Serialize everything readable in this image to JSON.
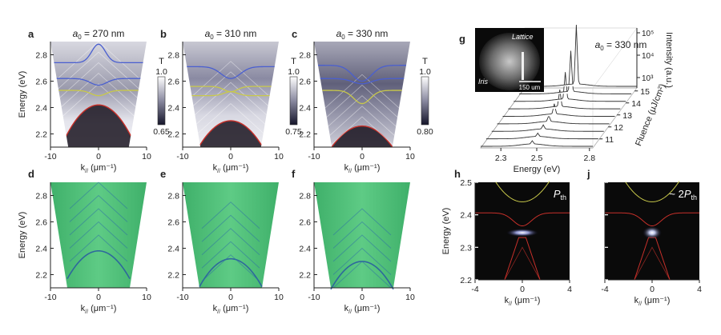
{
  "panels": {
    "a": {
      "letter": "a",
      "title": "a₀ = 270 nm",
      "cbar_top": "1.0",
      "cbar_bottom": "0.65",
      "cbar_label": "T"
    },
    "b": {
      "letter": "b",
      "title": "a₀ = 310 nm",
      "cbar_top": "1.0",
      "cbar_bottom": "0.75",
      "cbar_label": "T"
    },
    "c": {
      "letter": "c",
      "title": "a₀ = 330 nm",
      "cbar_top": "1.0",
      "cbar_bottom": "0.80",
      "cbar_label": "T"
    },
    "d": {
      "letter": "d"
    },
    "e": {
      "letter": "e"
    },
    "f": {
      "letter": "f"
    },
    "g": {
      "letter": "g",
      "annotation": "a₀ = 330 nm",
      "inset_label_lattice": "Lattice",
      "inset_label_iris": "Iris",
      "inset_scalebar": "150 um"
    },
    "h": {
      "letter": "h",
      "annotation": "P_th"
    },
    "j": {
      "letter": "j",
      "annotation": "~ 2P_th"
    }
  },
  "labels": {
    "energy_ev": "Energy (eV)",
    "k_parallel": "k// (μm⁻¹)",
    "intensity": "Intensity (a.u.)",
    "fluence": "Fluence (μJ/cm²)"
  },
  "colors": {
    "blue_band": "#4a5fd0",
    "yellow_band": "#c9c94a",
    "red_band": "#c8302a",
    "green_bg": "#4fc07a",
    "dark_bg": "#0a0a0a"
  },
  "chart_data": [
    {
      "panel": "a",
      "type": "heatmap",
      "xlabel": "k// (μm⁻¹)",
      "ylabel": "Energy (eV)",
      "xlim": [
        -10,
        10
      ],
      "ylim": [
        2.1,
        2.9
      ],
      "xticks": [
        -10,
        0,
        10
      ],
      "yticks": [
        2.2,
        2.4,
        2.6,
        2.8
      ],
      "colorbar": {
        "label": "T",
        "range": [
          0.65,
          1.0
        ]
      }
    },
    {
      "panel": "b",
      "type": "heatmap",
      "xlabel": "k// (μm⁻¹)",
      "xlim": [
        -10,
        10
      ],
      "ylim": [
        2.1,
        2.9
      ],
      "xticks": [
        -10,
        0,
        10
      ],
      "yticks": [
        2.2,
        2.4,
        2.6,
        2.8
      ],
      "colorbar": {
        "label": "T",
        "range": [
          0.75,
          1.0
        ]
      }
    },
    {
      "panel": "c",
      "type": "heatmap",
      "xlabel": "k// (μm⁻¹)",
      "xlim": [
        -10,
        10
      ],
      "ylim": [
        2.1,
        2.9
      ],
      "xticks": [
        -10,
        0,
        10
      ],
      "yticks": [
        2.2,
        2.4,
        2.6,
        2.8
      ],
      "colorbar": {
        "label": "T",
        "range": [
          0.8,
          1.0
        ]
      }
    },
    {
      "panel": "d",
      "type": "heatmap",
      "xlabel": "k// (μm⁻¹)",
      "ylabel": "Energy (eV)",
      "xlim": [
        -10,
        10
      ],
      "ylim": [
        2.1,
        2.9
      ],
      "xticks": [
        -10,
        0,
        10
      ],
      "yticks": [
        2.2,
        2.4,
        2.6,
        2.8
      ]
    },
    {
      "panel": "e",
      "type": "heatmap",
      "xlabel": "k// (μm⁻¹)",
      "xlim": [
        -10,
        10
      ],
      "ylim": [
        2.1,
        2.9
      ],
      "xticks": [
        -10,
        0,
        10
      ],
      "yticks": [
        2.2,
        2.4,
        2.6,
        2.8
      ]
    },
    {
      "panel": "f",
      "type": "heatmap",
      "xlabel": "k// (μm⁻¹)",
      "xlim": [
        -10,
        10
      ],
      "ylim": [
        2.1,
        2.9
      ],
      "xticks": [
        -10,
        0,
        10
      ],
      "yticks": [
        2.2,
        2.4,
        2.6,
        2.8
      ]
    },
    {
      "panel": "g",
      "type": "line",
      "xlabel": "Energy (eV)",
      "ylabel": "Intensity (a.u.)",
      "zlabel": "Fluence (μJ/cm²)",
      "xticks": [
        2.3,
        2.5,
        2.8
      ],
      "fluence_ticks": [
        11,
        12,
        13,
        14,
        15
      ],
      "intensity_ticks": [
        "10³",
        "10⁴",
        "10⁵"
      ],
      "peak_energy": 2.5
    },
    {
      "panel": "h",
      "type": "heatmap",
      "xlabel": "k// (μm⁻¹)",
      "ylabel": "Energy (eV)",
      "xlim": [
        -4,
        4
      ],
      "ylim": [
        2.2,
        2.5
      ],
      "xticks": [
        -4,
        0,
        4
      ],
      "yticks": [
        2.2,
        2.3,
        2.4,
        2.5
      ]
    },
    {
      "panel": "j",
      "type": "heatmap",
      "xlabel": "k// (μm⁻¹)",
      "xlim": [
        -4,
        4
      ],
      "ylim": [
        2.2,
        2.5
      ],
      "xticks": [
        -4,
        0,
        4
      ],
      "yticks": [
        2.2,
        2.3,
        2.4,
        2.5
      ]
    }
  ]
}
